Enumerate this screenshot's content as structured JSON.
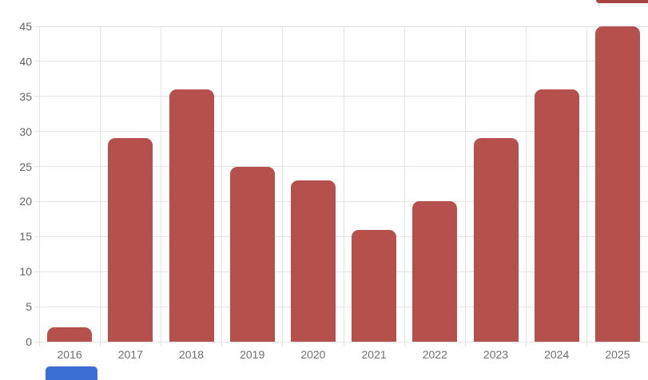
{
  "chart_data": {
    "type": "bar",
    "title": "",
    "xlabel": "",
    "ylabel": "",
    "categories": [
      "2016",
      "2017",
      "2018",
      "2019",
      "2020",
      "2021",
      "2022",
      "2023",
      "2024",
      "2025"
    ],
    "values": [
      2,
      29,
      36,
      25,
      23,
      16,
      20,
      29,
      36,
      45
    ],
    "ylim": [
      0,
      45
    ],
    "yticks": [
      0,
      5,
      10,
      15,
      20,
      25,
      30,
      35,
      40,
      45
    ],
    "grid": true,
    "legend": "none",
    "bar_color": "#b5504d",
    "gridline_color": "#e3e3e3",
    "y_label_color": "#636363",
    "x_label_color": "#6e6e6e",
    "background_color": "#ffffff"
  },
  "fragments": {
    "top_right_color": "#a84543",
    "bottom_left_color": "#3b6fd4"
  }
}
